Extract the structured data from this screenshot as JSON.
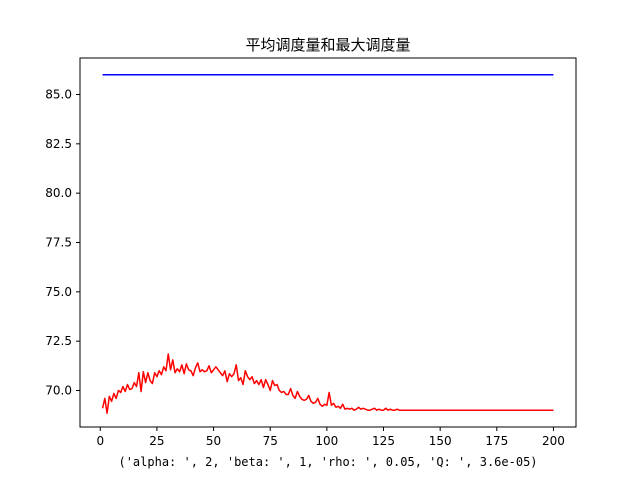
{
  "chart_data": {
    "type": "line",
    "title": "平均调度量和最大调度量",
    "xlabel": "('alpha: ', 2, 'beta: ', 1, 'rho: ', 0.05, 'Q: ', 3.6e-05)",
    "ylabel": "",
    "xlim": [
      -8.95,
      209.95
    ],
    "ylim": [
      68.15,
      86.85
    ],
    "xticks": [
      0,
      25,
      50,
      75,
      100,
      125,
      150,
      175,
      200
    ],
    "xtick_labels": [
      "0",
      "25",
      "50",
      "75",
      "100",
      "125",
      "150",
      "175",
      "200"
    ],
    "yticks": [
      70.0,
      72.5,
      75.0,
      77.5,
      80.0,
      82.5,
      85.0
    ],
    "ytick_labels": [
      "70.0",
      "72.5",
      "75.0",
      "77.5",
      "80.0",
      "82.5",
      "85.0"
    ],
    "grid": false,
    "legend": "none",
    "series": [
      {
        "color": "#0000ff",
        "x": [
          1,
          200
        ],
        "values": [
          86.0,
          86.0
        ]
      },
      {
        "color": "#ff0000",
        "x": [
          1,
          2,
          3,
          4,
          5,
          6,
          7,
          8,
          9,
          10,
          11,
          12,
          13,
          14,
          15,
          16,
          17,
          18,
          19,
          20,
          21,
          22,
          23,
          24,
          25,
          26,
          27,
          28,
          29,
          30,
          31,
          32,
          33,
          34,
          35,
          36,
          37,
          38,
          39,
          40,
          41,
          42,
          43,
          44,
          45,
          46,
          47,
          48,
          49,
          50,
          51,
          52,
          53,
          54,
          55,
          56,
          57,
          58,
          59,
          60,
          61,
          62,
          63,
          64,
          65,
          66,
          67,
          68,
          69,
          70,
          71,
          72,
          73,
          74,
          75,
          76,
          77,
          78,
          79,
          80,
          81,
          82,
          83,
          84,
          85,
          86,
          87,
          88,
          89,
          90,
          91,
          92,
          93,
          94,
          95,
          96,
          97,
          98,
          99,
          100,
          101,
          102,
          103,
          104,
          105,
          106,
          107,
          108,
          109,
          110,
          111,
          112,
          113,
          114,
          115,
          116,
          117,
          118,
          119,
          120,
          121,
          122,
          123,
          124,
          125,
          126,
          127,
          128,
          129,
          130,
          131,
          132,
          135,
          140,
          150,
          160,
          170,
          180,
          190,
          200
        ],
        "values": [
          69.1,
          69.6,
          68.85,
          69.7,
          69.45,
          69.85,
          69.6,
          70.0,
          69.9,
          70.2,
          69.95,
          70.3,
          70.05,
          70.1,
          70.4,
          70.2,
          70.9,
          69.95,
          70.95,
          70.4,
          70.9,
          70.5,
          70.35,
          70.9,
          70.7,
          71.0,
          70.8,
          71.2,
          71.0,
          71.85,
          71.05,
          71.55,
          70.9,
          71.1,
          70.95,
          71.3,
          70.85,
          71.35,
          71.05,
          71.0,
          70.75,
          71.15,
          71.4,
          70.95,
          71.05,
          70.95,
          71.0,
          71.25,
          70.9,
          71.05,
          71.2,
          71.05,
          70.9,
          70.75,
          71.0,
          70.45,
          70.85,
          70.7,
          70.85,
          71.3,
          70.5,
          70.65,
          70.3,
          71.0,
          70.7,
          70.55,
          70.7,
          70.35,
          70.5,
          70.3,
          70.55,
          70.15,
          70.55,
          70.3,
          70.0,
          70.5,
          70.25,
          70.3,
          70.0,
          69.9,
          69.95,
          69.8,
          69.8,
          70.1,
          69.75,
          69.6,
          69.95,
          69.7,
          69.55,
          69.5,
          69.55,
          69.75,
          69.45,
          69.35,
          69.4,
          69.6,
          69.3,
          69.2,
          69.3,
          69.25,
          69.9,
          69.25,
          69.35,
          69.15,
          69.2,
          69.1,
          69.3,
          69.05,
          69.1,
          69.05,
          69.1,
          69.0,
          69.05,
          69.15,
          69.05,
          69.1,
          69.05,
          69.0,
          69.0,
          69.05,
          69.1,
          69.0,
          69.05,
          69.0,
          69.0,
          69.1,
          69.0,
          69.05,
          69.0,
          69.0,
          69.05,
          69.0,
          69.0,
          69.0,
          69.0,
          69.0,
          69.0,
          69.0,
          69.0,
          69.0
        ]
      }
    ]
  }
}
